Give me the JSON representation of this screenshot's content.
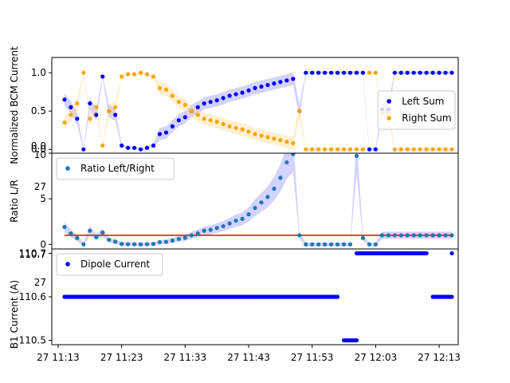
{
  "chart_data": [
    {
      "type": "scatter",
      "ylabel": "Normalized BCM Current",
      "ylim": [
        -0.05,
        1.2
      ],
      "yticks": [
        "0.0",
        "0.5",
        "1.0"
      ],
      "ytick_values": [
        0,
        0.5,
        1.0
      ],
      "legend_position": "center-right",
      "series": [
        {
          "name": "Left Sum",
          "color": "#0000ff",
          "band_color": "#8080ff",
          "x": [
            "11:14",
            "11:15",
            "11:16",
            "11:17",
            "11:18",
            "11:19",
            "11:20",
            "11:21",
            "11:22",
            "11:23",
            "11:24",
            "11:25",
            "11:26",
            "11:27",
            "11:28",
            "11:29",
            "11:30",
            "11:31",
            "11:32",
            "11:33",
            "11:34",
            "11:35",
            "11:36",
            "11:37",
            "11:38",
            "11:39",
            "11:40",
            "11:41",
            "11:42",
            "11:43",
            "11:44",
            "11:45",
            "11:46",
            "11:47",
            "11:48",
            "11:49",
            "11:50",
            "11:51",
            "11:52",
            "11:53",
            "11:54",
            "11:55",
            "11:56",
            "11:57",
            "11:58",
            "11:59",
            "12:00",
            "12:01",
            "12:02",
            "12:03",
            "12:04",
            "12:05",
            "12:06",
            "12:07",
            "12:08",
            "12:09",
            "12:10",
            "12:11",
            "12:12",
            "12:13",
            "12:14",
            "12:15"
          ],
          "y": [
            0.65,
            0.55,
            0.4,
            0.0,
            0.6,
            0.45,
            0.95,
            0.5,
            0.45,
            0.05,
            0.02,
            0.02,
            0.0,
            0.02,
            0.05,
            0.2,
            0.22,
            0.3,
            0.38,
            0.42,
            0.5,
            0.55,
            0.6,
            0.62,
            0.64,
            0.67,
            0.7,
            0.72,
            0.74,
            0.77,
            0.8,
            0.82,
            0.84,
            0.86,
            0.88,
            0.9,
            0.92,
            0.5,
            1.0,
            1.0,
            1.0,
            1.0,
            1.0,
            1.0,
            1.0,
            1.0,
            1.0,
            1.0,
            0.0,
            0.0,
            0.52,
            0.52,
            1.0,
            1.0,
            1.0,
            1.0,
            1.0,
            1.0,
            1.0,
            1.0,
            1.0,
            1.0
          ]
        },
        {
          "name": "Right Sum",
          "color": "#ffa500",
          "band_color": "#ffd27f",
          "x": [
            "11:14",
            "11:15",
            "11:16",
            "11:17",
            "11:18",
            "11:19",
            "11:20",
            "11:21",
            "11:22",
            "11:23",
            "11:24",
            "11:25",
            "11:26",
            "11:27",
            "11:28",
            "11:29",
            "11:30",
            "11:31",
            "11:32",
            "11:33",
            "11:34",
            "11:35",
            "11:36",
            "11:37",
            "11:38",
            "11:39",
            "11:40",
            "11:41",
            "11:42",
            "11:43",
            "11:44",
            "11:45",
            "11:46",
            "11:47",
            "11:48",
            "11:49",
            "11:50",
            "11:51",
            "11:52",
            "11:53",
            "11:54",
            "11:55",
            "11:56",
            "11:57",
            "11:58",
            "11:59",
            "12:00",
            "12:01",
            "12:02",
            "12:03",
            "12:04",
            "12:05",
            "12:06",
            "12:07",
            "12:08",
            "12:09",
            "12:10",
            "12:11",
            "12:12",
            "12:13",
            "12:14",
            "12:15"
          ],
          "y": [
            0.35,
            0.45,
            0.6,
            1.0,
            0.4,
            0.55,
            0.05,
            0.5,
            0.55,
            0.95,
            0.98,
            0.98,
            1.0,
            0.98,
            0.95,
            0.8,
            0.78,
            0.7,
            0.62,
            0.58,
            0.5,
            0.45,
            0.4,
            0.38,
            0.36,
            0.33,
            0.3,
            0.28,
            0.26,
            0.23,
            0.2,
            0.18,
            0.16,
            0.14,
            0.12,
            0.1,
            0.08,
            0.5,
            0.0,
            0.0,
            0.0,
            0.0,
            0.0,
            0.0,
            0.0,
            0.0,
            0.0,
            0.0,
            1.0,
            1.0,
            0.48,
            0.48,
            0.0,
            0.0,
            0.0,
            0.0,
            0.0,
            0.0,
            0.0,
            0.0,
            0.0,
            0.0
          ]
        }
      ]
    },
    {
      "type": "scatter",
      "ylabel": "Ratio L/R",
      "ylim": [
        -0.5,
        10
      ],
      "yticks": [
        "0",
        "5",
        "10"
      ],
      "ytick_values": [
        0,
        5,
        10
      ],
      "legend_position": "upper-left",
      "reference_line": {
        "y": 1.0,
        "color": "#ff0000"
      },
      "series": [
        {
          "name": "Ratio Left/Right",
          "color": "#1f77b4",
          "band_color": "#8080ff",
          "x": [
            "11:14",
            "11:15",
            "11:16",
            "11:17",
            "11:18",
            "11:19",
            "11:20",
            "11:21",
            "11:22",
            "11:23",
            "11:24",
            "11:25",
            "11:26",
            "11:27",
            "11:28",
            "11:29",
            "11:30",
            "11:31",
            "11:32",
            "11:33",
            "11:34",
            "11:35",
            "11:36",
            "11:37",
            "11:38",
            "11:39",
            "11:40",
            "11:41",
            "11:42",
            "11:43",
            "11:44",
            "11:45",
            "11:46",
            "11:47",
            "11:48",
            "11:49",
            "11:50",
            "11:51",
            "11:52",
            "11:53",
            "11:54",
            "11:55",
            "11:56",
            "11:57",
            "11:58",
            "11:59",
            "12:00",
            "12:01",
            "12:02",
            "12:03",
            "12:04",
            "12:05",
            "12:06",
            "12:07",
            "12:08",
            "12:09",
            "12:10",
            "12:11",
            "12:12",
            "12:13",
            "12:14",
            "12:15"
          ],
          "y": [
            1.9,
            1.2,
            0.7,
            0.0,
            1.5,
            0.8,
            1.3,
            0.5,
            0.3,
            0.05,
            0.02,
            0.02,
            0.0,
            0.02,
            0.05,
            0.25,
            0.28,
            0.43,
            0.6,
            0.72,
            1.0,
            1.2,
            1.5,
            1.6,
            1.8,
            2.0,
            2.3,
            2.6,
            2.8,
            3.3,
            4.0,
            4.6,
            5.2,
            6.1,
            7.3,
            9.0,
            9.9,
            1.0,
            0.0,
            0.0,
            0.0,
            0.0,
            0.0,
            0.0,
            0.0,
            0.0,
            9.7,
            0.7,
            0.0,
            0.0,
            1.0,
            1.0,
            1.0,
            1.0,
            1.0,
            1.0,
            1.0,
            1.0,
            1.0,
            1.0,
            1.0,
            1.0
          ]
        }
      ]
    },
    {
      "type": "scatter",
      "ylabel": "B1 Current (A)",
      "ylim": [
        110.49,
        110.71
      ],
      "yticks": [
        "110.5",
        "110.6",
        "110.7"
      ],
      "ytick_values": [
        110.5,
        110.6,
        110.7
      ],
      "legend_position": "upper-left",
      "series": [
        {
          "name": "Dipole Current",
          "color": "#0000ff",
          "segments": [
            {
              "x_start": "11:14",
              "x_end": "11:57",
              "y": 110.6
            },
            {
              "x_start": "11:58",
              "x_end": "12:00",
              "y": 110.5
            },
            {
              "x_start": "12:00",
              "x_end": "12:11",
              "y": 110.7
            },
            {
              "x_start": "12:12",
              "x_end": "12:15",
              "y": 110.6
            },
            {
              "x_start": "12:15",
              "x_end": "12:15",
              "y": 110.7
            }
          ]
        }
      ]
    }
  ],
  "x_axis": {
    "range": [
      "11:12",
      "12:16"
    ],
    "ticks": [
      "27 11:13",
      "27 11:23",
      "27 11:33",
      "27 11:43",
      "27 11:53",
      "27 12:03",
      "27 12:13"
    ],
    "tick_times": [
      "11:13",
      "11:23",
      "11:33",
      "11:43",
      "11:53",
      "12:03",
      "12:13"
    ]
  },
  "subplot_tick_labels": {
    "top_panel_bottom": "0.0",
    "middle_panel_top": "10",
    "middle_panel_shared": "27",
    "bottom_panel_top": "110.7",
    "bottom_panel_shared": "27"
  }
}
